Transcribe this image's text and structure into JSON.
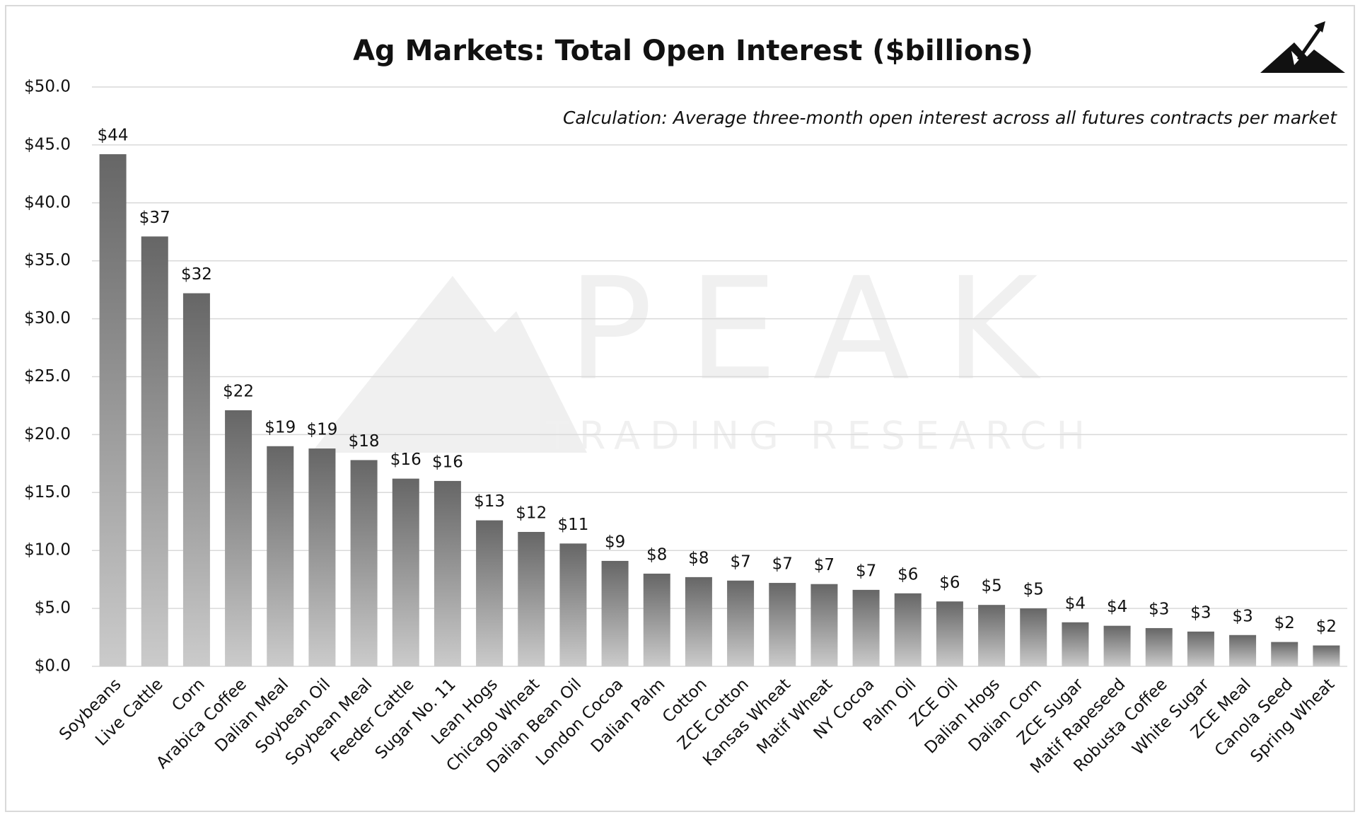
{
  "chart_data": {
    "type": "bar",
    "title": "Ag Markets:  Total  Open  Interest  ($billions)",
    "subtitle": "Calculation: Average three-month open interest across all futures contracts per market",
    "watermark": {
      "title": "PEAK",
      "subtitle": "TRADING RESEARCH"
    },
    "categories": [
      "Soybeans",
      "Live Cattle",
      "Corn",
      "Arabica Coffee",
      "Dalian Meal",
      "Soybean Oil",
      "Soybean Meal",
      "Feeder Cattle",
      "Sugar No. 11",
      "Lean Hogs",
      "Chicago Wheat",
      "Dalian Bean Oil",
      "London Cocoa",
      "Dalian Palm",
      "Cotton",
      "ZCE Cotton",
      "Kansas Wheat",
      "Matif Wheat",
      "NY Cocoa",
      "Palm Oil",
      "ZCE Oil",
      "Dalian Hogs",
      "Dalian Corn",
      "ZCE Sugar",
      "Matif Rapeseed",
      "Robusta Coffee",
      "White Sugar",
      "ZCE Meal",
      "Canola Seed",
      "Spring Wheat"
    ],
    "values": [
      44.2,
      37.1,
      32.2,
      22.1,
      19.0,
      18.8,
      17.8,
      16.2,
      16.0,
      12.6,
      11.6,
      10.6,
      9.1,
      8.0,
      7.7,
      7.4,
      7.2,
      7.1,
      6.6,
      6.3,
      5.6,
      5.3,
      5.0,
      3.8,
      3.5,
      3.3,
      3.0,
      2.7,
      2.1,
      1.8
    ],
    "value_labels": [
      "$44",
      "$37",
      "$32",
      "$22",
      "$19",
      "$19",
      "$18",
      "$16",
      "$16",
      "$13",
      "$12",
      "$11",
      "$9",
      "$8",
      "$8",
      "$7",
      "$7",
      "$7",
      "$7",
      "$6",
      "$6",
      "$5",
      "$5",
      "$4",
      "$4",
      "$3",
      "$3",
      "$3",
      "$2",
      "$2"
    ],
    "color": "#666666",
    "ylim": [
      0,
      50
    ],
    "yticks": [
      {
        "value": 0,
        "label": "$0.0"
      },
      {
        "value": 5,
        "label": "$5.0"
      },
      {
        "value": 10,
        "label": "$10.0"
      },
      {
        "value": 15,
        "label": "$15.0"
      },
      {
        "value": 20,
        "label": "$20.0"
      },
      {
        "value": 25,
        "label": "$25.0"
      },
      {
        "value": 30,
        "label": "$30.0"
      },
      {
        "value": 35,
        "label": "$35.0"
      },
      {
        "value": 40,
        "label": "$40.0"
      },
      {
        "value": 45,
        "label": "$45.0"
      },
      {
        "value": 50,
        "label": "$50.0"
      }
    ],
    "grid": true
  }
}
